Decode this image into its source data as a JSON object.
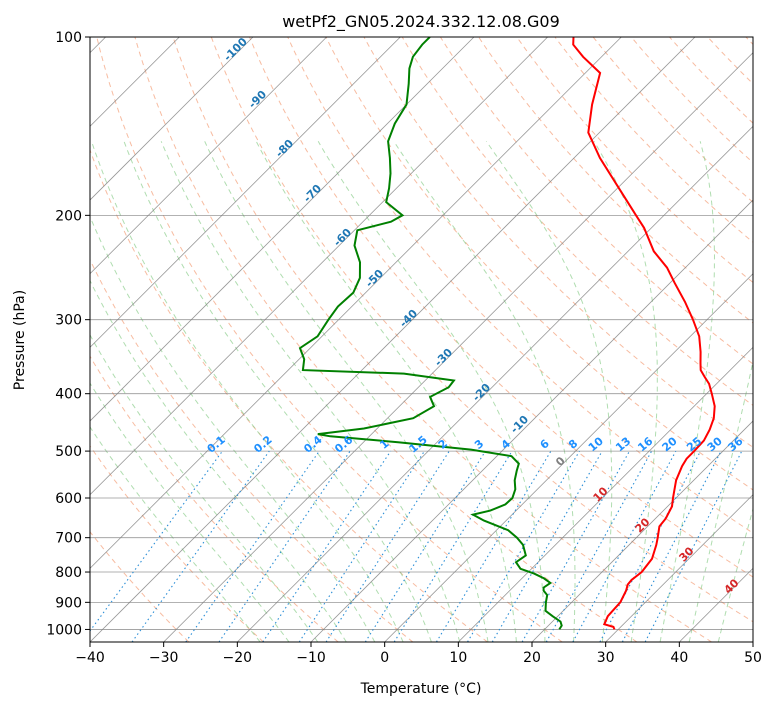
{
  "chart_data": {
    "type": "line",
    "subtype": "skew-t log-p diagram",
    "title": "wetPf2_GN05.2024.332.12.08.G09",
    "xlabel": "Temperature (°C)",
    "ylabel": "Pressure (hPa)",
    "xlim": [
      -40,
      50
    ],
    "ylim": [
      1050,
      100
    ],
    "yscale": "log",
    "x_ticks": [
      "−40",
      "−30",
      "−20",
      "−10",
      "0",
      "10",
      "20",
      "30",
      "40",
      "50"
    ],
    "y_ticks": [
      "100",
      "200",
      "300",
      "400",
      "500",
      "600",
      "700",
      "800",
      "900",
      "1000"
    ],
    "isotherm_labels": [
      "-100",
      "-90",
      "-80",
      "-70",
      "-60",
      "-50",
      "-40",
      "-30",
      "-20",
      "-10",
      "0",
      "10",
      "20",
      "30",
      "40"
    ],
    "mixing_ratio_labels": [
      "0.1",
      "0.2",
      "0.4",
      "0.6",
      "1",
      "1.5",
      "2",
      "3",
      "4",
      "6",
      "8",
      "10",
      "13",
      "16",
      "20",
      "25",
      "30",
      "36"
    ],
    "series": [
      {
        "key": "temperature",
        "color": "#ff0000",
        "points": [
          [
            1000,
            29.5
          ],
          [
            990,
            29
          ],
          [
            980,
            27.4
          ],
          [
            950,
            26.8
          ],
          [
            900,
            26.6
          ],
          [
            860,
            25.8
          ],
          [
            840,
            25.2
          ],
          [
            825,
            25.1
          ],
          [
            800,
            25.4
          ],
          [
            760,
            25.0
          ],
          [
            720,
            23.7
          ],
          [
            700,
            22.9
          ],
          [
            670,
            21.6
          ],
          [
            650,
            21.4
          ],
          [
            620,
            20.6
          ],
          [
            600,
            19.6
          ],
          [
            560,
            17.6
          ],
          [
            530,
            16.5
          ],
          [
            515,
            16.1
          ],
          [
            500,
            16.1
          ],
          [
            480,
            16.0
          ],
          [
            460,
            15.3
          ],
          [
            440,
            14.3
          ],
          [
            420,
            12.8
          ],
          [
            400,
            10.7
          ],
          [
            385,
            9.0
          ],
          [
            375,
            7.5
          ],
          [
            365,
            6.0
          ],
          [
            355,
            5.0
          ],
          [
            340,
            3.5
          ],
          [
            320,
            1.2
          ],
          [
            300,
            -1.9
          ],
          [
            280,
            -5.4
          ],
          [
            260,
            -9.4
          ],
          [
            245,
            -12.5
          ],
          [
            230,
            -16.5
          ],
          [
            210,
            -21.0
          ],
          [
            200,
            -23.8
          ],
          [
            180,
            -29.8
          ],
          [
            160,
            -36.5
          ],
          [
            145,
            -41.5
          ],
          [
            130,
            -44.8
          ],
          [
            115,
            -48.0
          ],
          [
            108,
            -52.5
          ],
          [
            103,
            -55.5
          ],
          [
            100,
            -56.5
          ]
        ]
      },
      {
        "key": "dewpoint",
        "color": "#008000",
        "points": [
          [
            1000,
            22.0
          ],
          [
            985,
            21.8
          ],
          [
            970,
            21.1
          ],
          [
            950,
            19.3
          ],
          [
            930,
            17.6
          ],
          [
            900,
            16.5
          ],
          [
            875,
            15.7
          ],
          [
            860,
            14.6
          ],
          [
            850,
            14.2
          ],
          [
            835,
            14.5
          ],
          [
            820,
            13.0
          ],
          [
            805,
            11.0
          ],
          [
            790,
            8.5
          ],
          [
            770,
            7.0
          ],
          [
            750,
            7.4
          ],
          [
            720,
            5.6
          ],
          [
            700,
            3.8
          ],
          [
            680,
            1.6
          ],
          [
            655,
            -3.0
          ],
          [
            640,
            -5.3
          ],
          [
            630,
            -3.5
          ],
          [
            615,
            -2.3
          ],
          [
            600,
            -2.2
          ],
          [
            580,
            -3.0
          ],
          [
            560,
            -4.3
          ],
          [
            540,
            -5.3
          ],
          [
            525,
            -6.0
          ],
          [
            510,
            -8.0
          ],
          [
            497,
            -14.4
          ],
          [
            483,
            -25.3
          ],
          [
            472,
            -35.3
          ],
          [
            468,
            -37.3
          ],
          [
            458,
            -31.8
          ],
          [
            440,
            -26.5
          ],
          [
            420,
            -25.3
          ],
          [
            405,
            -27.1
          ],
          [
            390,
            -25.9
          ],
          [
            380,
            -26.1
          ],
          [
            370,
            -33.8
          ],
          [
            365,
            -48.0
          ],
          [
            350,
            -49.3
          ],
          [
            335,
            -51.4
          ],
          [
            320,
            -50.6
          ],
          [
            300,
            -51.4
          ],
          [
            285,
            -51.9
          ],
          [
            270,
            -51.7
          ],
          [
            255,
            -52.8
          ],
          [
            240,
            -54.9
          ],
          [
            225,
            -57.9
          ],
          [
            212,
            -59.6
          ],
          [
            205,
            -56.2
          ],
          [
            200,
            -55.5
          ],
          [
            190,
            -59.5
          ],
          [
            180,
            -61.0
          ],
          [
            170,
            -62.8
          ],
          [
            160,
            -65.0
          ],
          [
            150,
            -67.5
          ],
          [
            140,
            -69.0
          ],
          [
            130,
            -70.0
          ],
          [
            120,
            -72.5
          ],
          [
            113,
            -74.5
          ],
          [
            108,
            -75.6
          ],
          [
            103,
            -76.0
          ],
          [
            100,
            -76.0
          ]
        ]
      }
    ]
  }
}
